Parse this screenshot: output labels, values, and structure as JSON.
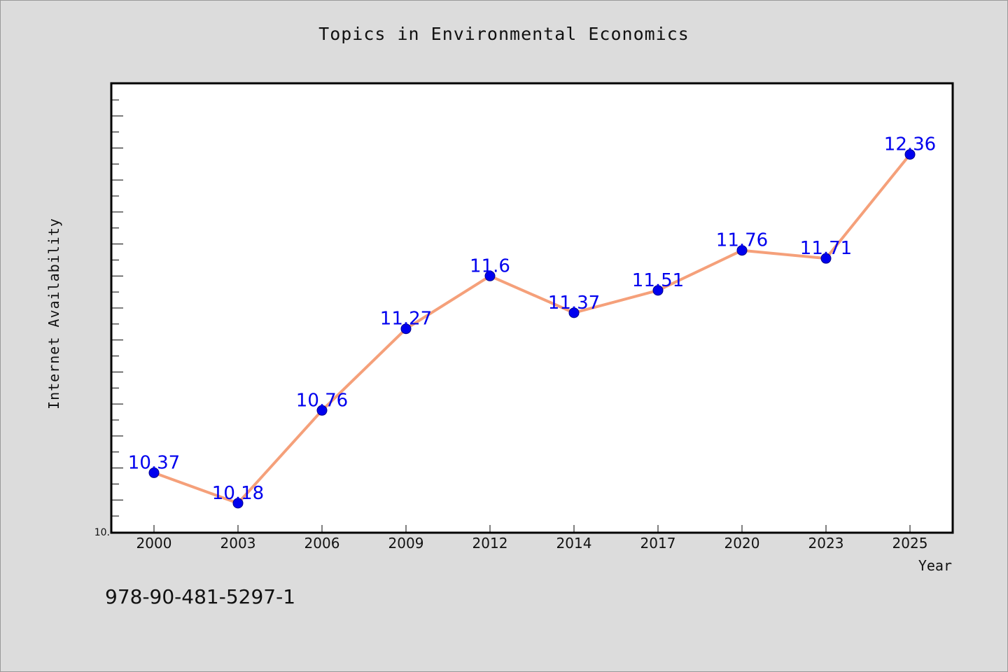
{
  "isbn": "978-90-481-5297-1",
  "colors": {
    "background": "#dcdcdc",
    "plot_background": "#ffffff",
    "line": "#f5a07a",
    "marker": "#0000ee",
    "label": "#0000ee"
  },
  "chart_data": {
    "type": "line",
    "title": "Topics in Environmental Economics",
    "xlabel": "Year",
    "ylabel": "Internet Availability",
    "categories": [
      "2000",
      "2003",
      "2006",
      "2009",
      "2012",
      "2014",
      "2017",
      "2020",
      "2023",
      "2025"
    ],
    "series": [
      {
        "values": [
          10.37,
          10.18,
          10.76,
          11.27,
          11.6,
          11.37,
          11.51,
          11.76,
          11.71,
          12.36
        ]
      }
    ],
    "data_labels": [
      "10.37",
      "10.18",
      "10.76",
      "11.27",
      "11.6",
      "11.37",
      "11.51",
      "11.76",
      "11.71",
      "12.36"
    ],
    "ylim": [
      10.0,
      12.8
    ],
    "y_tick_labels": [
      "10."
    ],
    "grid": false,
    "legend": false
  }
}
